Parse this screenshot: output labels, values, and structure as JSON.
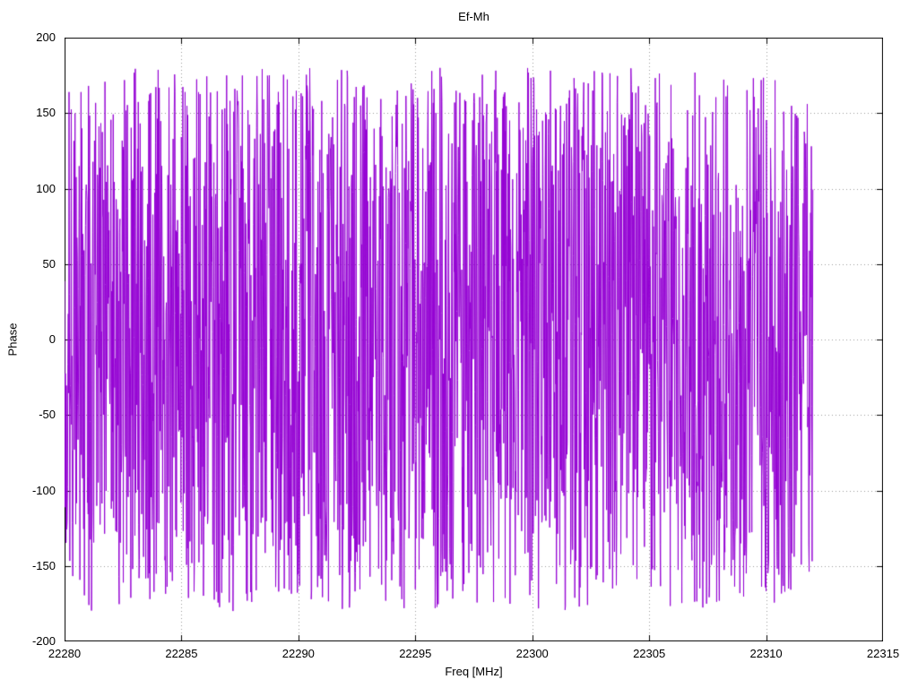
{
  "chart_data": {
    "type": "line",
    "title": "Ef-Mh",
    "xlabel": "Freq [MHz]",
    "ylabel": "Phase",
    "xlim": [
      22280,
      22315
    ],
    "ylim": [
      -200,
      200
    ],
    "x_ticks": [
      22280,
      22285,
      22290,
      22295,
      22300,
      22305,
      22310,
      22315
    ],
    "y_ticks": [
      -200,
      -150,
      -100,
      -50,
      0,
      50,
      100,
      150,
      200
    ],
    "grid": true,
    "grid_style": "dotted",
    "grid_color": "#9a9a9a",
    "border_color": "#000000",
    "background_color": "#ffffff",
    "legend": "none",
    "description": "Wrapped interferometric phase versus frequency; dense noise-like phase trace uniformly filling -180 to +180 degrees, data spans 22280 to approximately 22312 MHz with empty region from 22312 to 22315 MHz",
    "series": [
      {
        "name": "Ef-Mh phase",
        "color": "#9400D3",
        "line_width": 1,
        "x_start": 22280,
        "x_end": 22312,
        "n_points": 2000,
        "y_min": -180,
        "y_max": 180,
        "distribution": "uniform_wrapped_phase_noise",
        "seed": 1234567
      }
    ]
  }
}
